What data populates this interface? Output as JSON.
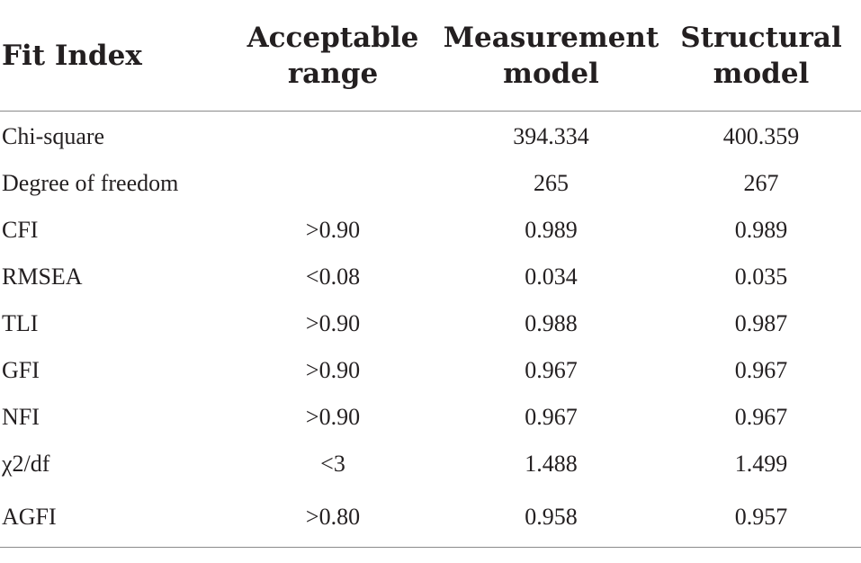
{
  "table": {
    "headers": [
      [
        "Fit Index"
      ],
      [
        "Acceptable",
        "range"
      ],
      [
        "Measurement",
        "model"
      ],
      [
        "Structural",
        "model"
      ]
    ],
    "rows": [
      [
        "Chi-square",
        "",
        "394.334",
        "400.359"
      ],
      [
        "Degree of freedom",
        "",
        "265",
        "267"
      ],
      [
        "CFI",
        ">0.90",
        "0.989",
        "0.989"
      ],
      [
        "RMSEA",
        "<0.08",
        "0.034",
        "0.035"
      ],
      [
        "TLI",
        ">0.90",
        "0.988",
        "0.987"
      ],
      [
        "GFI",
        ">0.90",
        "0.967",
        "0.967"
      ],
      [
        "NFI",
        ">0.90",
        "0.967",
        "0.967"
      ],
      [
        "χ2/df",
        "<3",
        "1.488",
        "1.499"
      ],
      [
        "AGFI",
        ">0.80",
        "0.958",
        "0.957"
      ]
    ]
  }
}
